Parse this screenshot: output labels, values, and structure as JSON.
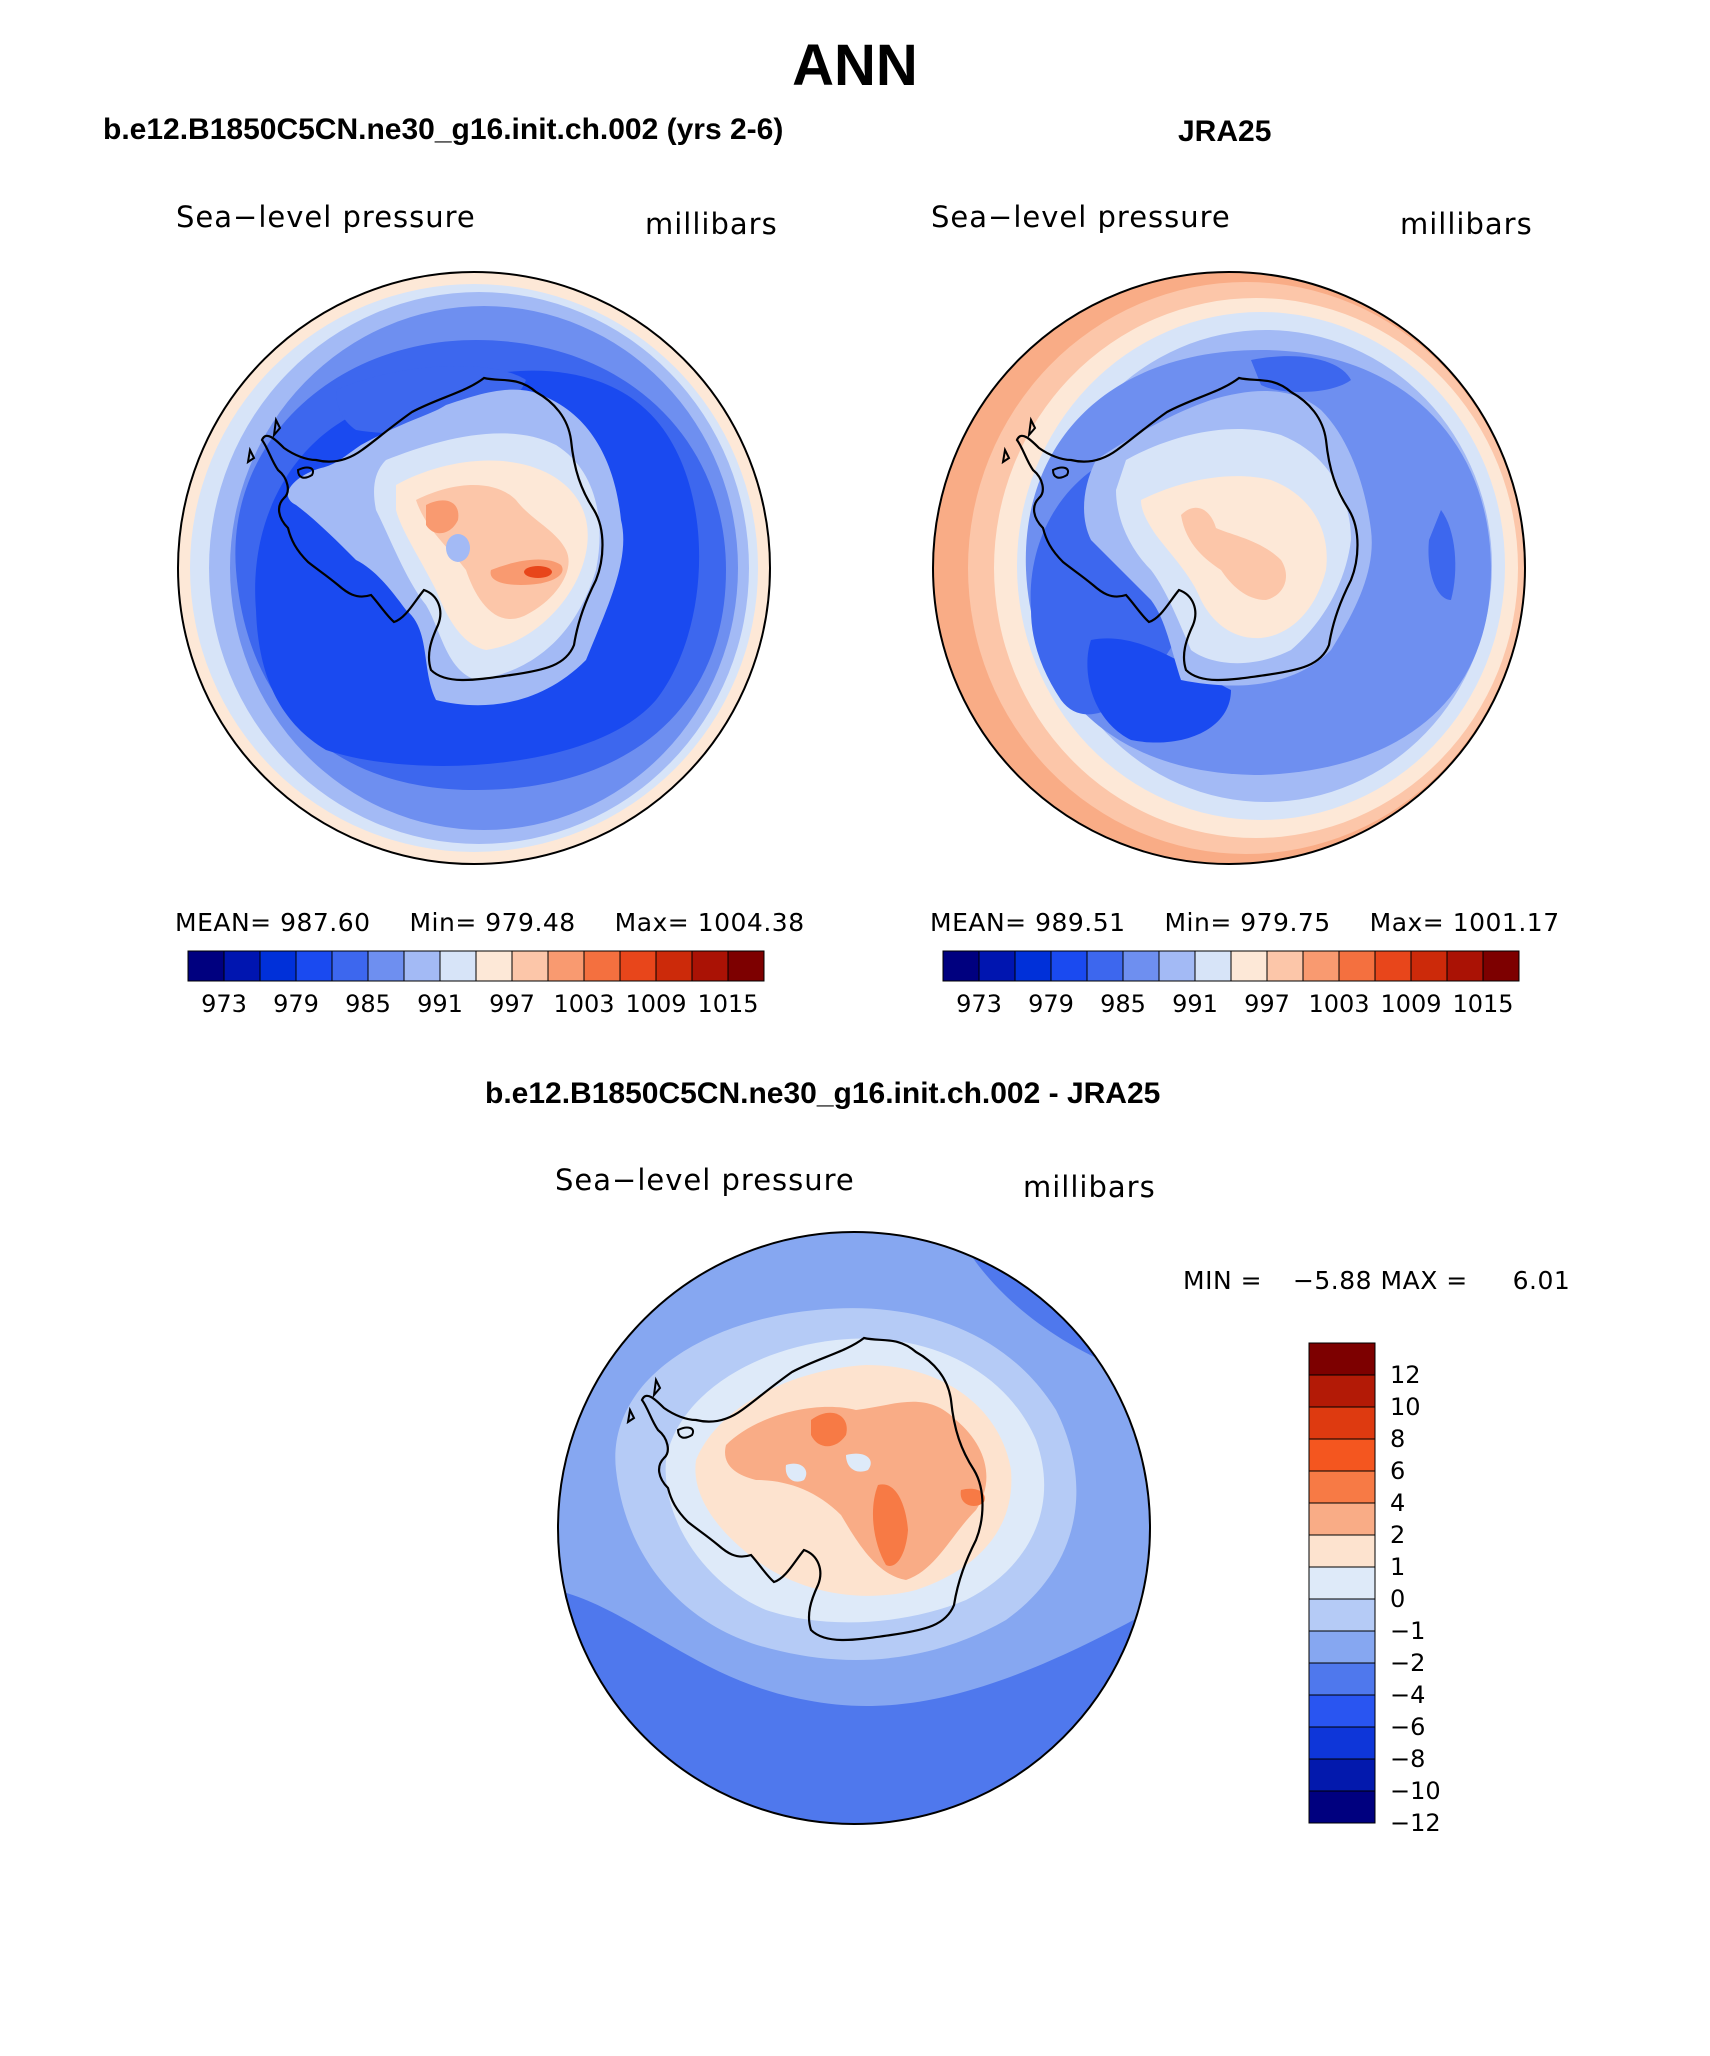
{
  "title": "ANN",
  "chart_data": [
    {
      "type": "heatmap",
      "panel": "model",
      "title": "b.e12.B1850C5CN.ne30_g16.init.ch.002 (yrs 2-6)",
      "variable_label": "Sea−level pressure",
      "units_label": "millibars",
      "projection": "south polar stereographic",
      "stats": {
        "mean_label": "MEAN=",
        "mean": "987.60",
        "min_label": "Min=",
        "min": "979.48",
        "max_label": "Max=",
        "max": "1004.38"
      },
      "levels": [
        973,
        979,
        985,
        991,
        997,
        1003,
        1009,
        1015
      ],
      "colorbar_labels": [
        "973",
        "979",
        "985",
        "991",
        "997",
        "1003",
        "1009",
        "1015"
      ],
      "colorbar_orientation": "horizontal"
    },
    {
      "type": "heatmap",
      "panel": "observations",
      "title": "JRA25",
      "variable_label": "Sea−level pressure",
      "units_label": "millibars",
      "projection": "south polar stereographic",
      "stats": {
        "mean_label": "MEAN=",
        "mean": "989.51",
        "min_label": "Min=",
        "min": "979.75",
        "max_label": "Max=",
        "max": "1001.17"
      },
      "levels": [
        973,
        979,
        985,
        991,
        997,
        1003,
        1009,
        1015
      ],
      "colorbar_labels": [
        "973",
        "979",
        "985",
        "991",
        "997",
        "1003",
        "1009",
        "1015"
      ],
      "colorbar_orientation": "horizontal"
    },
    {
      "type": "heatmap",
      "panel": "difference",
      "title": "b.e12.B1850C5CN.ne30_g16.init.ch.002 - JRA25",
      "variable_label": "Sea−level pressure",
      "units_label": "millibars",
      "projection": "south polar stereographic",
      "stats": {
        "min_label": "MIN =",
        "min": "−5.88",
        "max_label": "MAX =",
        "max": "6.01"
      },
      "levels": [
        12,
        10,
        8,
        6,
        4,
        2,
        1,
        0,
        -1,
        -2,
        -4,
        -6,
        -8,
        -10,
        -12
      ],
      "colorbar_labels": [
        "12",
        "10",
        "8",
        "6",
        "4",
        "2",
        "1",
        "0",
        "−1",
        "−2",
        "−4",
        "−6",
        "−8",
        "−10",
        "−12"
      ],
      "colorbar_orientation": "vertical"
    }
  ],
  "colors": {
    "abs_scale": [
      "#00007f",
      "#0015b0",
      "#0030d9",
      "#1a4af0",
      "#3d67ee",
      "#6e8ff0",
      "#a3baf5",
      "#d7e4f8",
      "#fde8d7",
      "#fcc6a9",
      "#f99a70",
      "#f4703f",
      "#e8461b",
      "#cc2a0a",
      "#aa1205",
      "#7d0000"
    ],
    "diff_scale": [
      "#7d0000",
      "#b31a06",
      "#de3a10",
      "#f4561f",
      "#f77a45",
      "#f9ac86",
      "#fde3cf",
      "#deeaf9",
      "#b5cbf6",
      "#86a7f1",
      "#4f78ed",
      "#2955f1",
      "#0e36d9",
      "#0319ad",
      "#00007f"
    ]
  }
}
